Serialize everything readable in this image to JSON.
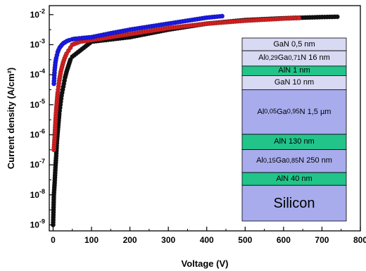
{
  "chart_data": {
    "type": "scatter",
    "xlabel": "Voltage (V)",
    "ylabel": "Current density (A/cm²)",
    "xlim": [
      -10,
      800
    ],
    "ylim_log10": [
      -9.2,
      -1.7
    ],
    "y_scale": "log",
    "x_ticks": [
      "0",
      "100",
      "200",
      "300",
      "400",
      "500",
      "600",
      "700",
      "800"
    ],
    "y_ticks": [
      {
        "base": "10",
        "exp": "-2"
      },
      {
        "base": "10",
        "exp": "-3"
      },
      {
        "base": "10",
        "exp": "-4"
      },
      {
        "base": "10",
        "exp": "-5"
      },
      {
        "base": "10",
        "exp": "-6"
      },
      {
        "base": "10",
        "exp": "-7"
      },
      {
        "base": "10",
        "exp": "-8"
      },
      {
        "base": "10",
        "exp": "-9"
      }
    ],
    "grid": false,
    "series": [
      {
        "color": "#111111",
        "x": [
          0,
          2,
          4,
          6,
          8,
          10,
          12,
          14,
          16,
          18,
          20,
          22,
          25,
          28,
          31,
          35,
          40,
          45,
          50,
          100,
          200,
          300,
          400,
          500,
          600,
          650,
          700,
          740
        ],
        "y_log10": [
          -9.0,
          -8.0,
          -7.6,
          -7.1,
          -6.7,
          -6.2,
          -5.9,
          -5.6,
          -5.3,
          -5.1,
          -4.9,
          -4.7,
          -4.5,
          -4.3,
          -4.1,
          -3.9,
          -3.7,
          -3.5,
          -3.4,
          -2.9,
          -2.75,
          -2.5,
          -2.3,
          -2.18,
          -2.12,
          -2.1,
          -2.08,
          -2.07
        ]
      },
      {
        "color": "#d42020",
        "x": [
          2,
          4,
          6,
          8,
          10,
          12,
          14,
          16,
          18,
          20,
          23,
          26,
          30,
          35,
          40,
          45,
          50,
          60,
          70,
          100,
          200,
          300,
          400,
          500,
          600,
          640
        ],
        "y_log10": [
          -6.5,
          -6.1,
          -5.6,
          -5.2,
          -4.9,
          -4.6,
          -4.4,
          -4.2,
          -4.05,
          -3.9,
          -3.75,
          -3.6,
          -3.45,
          -3.3,
          -3.2,
          -3.1,
          -3.0,
          -2.95,
          -2.9,
          -2.85,
          -2.65,
          -2.45,
          -2.3,
          -2.2,
          -2.13,
          -2.11
        ]
      },
      {
        "color": "#1a1ae6",
        "x": [
          2,
          4,
          6,
          8,
          10,
          12,
          14,
          17,
          20,
          23,
          27,
          31,
          36,
          42,
          50,
          60,
          75,
          100,
          150,
          200,
          250,
          300,
          350,
          400,
          440
        ],
        "y_log10": [
          -4.3,
          -3.85,
          -3.6,
          -3.45,
          -3.35,
          -3.25,
          -3.18,
          -3.1,
          -3.05,
          -3.0,
          -2.95,
          -2.92,
          -2.88,
          -2.85,
          -2.82,
          -2.8,
          -2.78,
          -2.75,
          -2.62,
          -2.5,
          -2.4,
          -2.3,
          -2.2,
          -2.1,
          -2.05
        ]
      }
    ]
  },
  "inset": {
    "layers": [
      {
        "text": "GaN 0,5 nm",
        "color": "#d8d9f2",
        "big": false,
        "h": 1
      },
      {
        "text": "Al<sub>0,29</sub>Ga<sub>0,71</sub>N 16 nm",
        "color": "#d8d9f2",
        "big": false,
        "h": 1.2
      },
      {
        "text": "AlN 1 nm",
        "color": "#22c48a",
        "big": false,
        "h": 0.75
      },
      {
        "text": "GaN 10 nm",
        "color": "#d8d9f2",
        "big": false,
        "h": 1.1
      },
      {
        "text": "Al<sub>0,05</sub>Ga<sub>0,95</sub>N 1,5 µm",
        "color": "#a8aced",
        "big": false,
        "h": 3.5
      },
      {
        "text": "AlN 130 nm",
        "color": "#22c48a",
        "big": false,
        "h": 1.2
      },
      {
        "text": "Al<sub>0,15</sub>Ga<sub>0,85</sub>N 250 nm",
        "color": "#a8aced",
        "big": false,
        "h": 1.8
      },
      {
        "text": "AlN 40 nm",
        "color": "#22c48a",
        "big": false,
        "h": 1.0
      },
      {
        "text": "Silicon",
        "color": "#a8aced",
        "big": true,
        "h": 2.8
      }
    ]
  }
}
